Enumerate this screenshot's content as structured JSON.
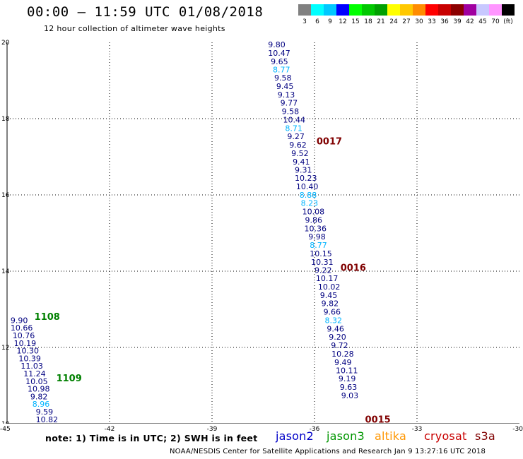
{
  "header": {
    "title": "00:00 – 11:59 UTC 01/08/2018",
    "subtitle": "12 hour collection of altimeter wave heights"
  },
  "color_scale": {
    "colors": [
      "#808080",
      "#00ffff",
      "#00c8ff",
      "#0000ff",
      "#00ff00",
      "#00c800",
      "#00a000",
      "#ffff00",
      "#ffc800",
      "#ff8c00",
      "#ff0000",
      "#c80000",
      "#8c0000",
      "#a000a0",
      "#c8c8ff",
      "#ff96ff",
      "#000000"
    ],
    "labels": [
      "3",
      "6",
      "9",
      "12",
      "15",
      "18",
      "21",
      "24",
      "27",
      "30",
      "33",
      "36",
      "39",
      "42",
      "45",
      "70",
      "(ft)"
    ]
  },
  "chart_data": {
    "type": "scatter",
    "title": "00:00 – 11:59 UTC 01/08/2018",
    "xlabel": "",
    "ylabel": "",
    "xlim": [
      -45,
      -30
    ],
    "ylim": [
      10,
      20
    ],
    "x_ticks": [
      "-45",
      "-42",
      "-39",
      "-36",
      "-33",
      "-30"
    ],
    "y_ticks": [
      "10",
      "12",
      "14",
      "16",
      "18",
      "20"
    ],
    "grid": true,
    "label_colors": {
      "dark": "#000080",
      "light": "#00b4ff",
      "time_jason3": "#008000",
      "time_cryosat": "#800000"
    },
    "series": [
      {
        "name": "",
        "points": [
          {
            "x": -37.36,
            "y": 19.87,
            "v": "9.80",
            "c": "dark"
          },
          {
            "x": -37.36,
            "y": 19.65,
            "v": "10.47",
            "c": "dark"
          },
          {
            "x": -37.28,
            "y": 19.43,
            "v": "9.65",
            "c": "dark"
          },
          {
            "x": -37.22,
            "y": 19.21,
            "v": "8.77",
            "c": "light"
          },
          {
            "x": -37.18,
            "y": 19.0,
            "v": "9.58",
            "c": "dark"
          },
          {
            "x": -37.12,
            "y": 18.78,
            "v": "9.45",
            "c": "dark"
          },
          {
            "x": -37.08,
            "y": 18.56,
            "v": "9.13",
            "c": "dark"
          },
          {
            "x": -37.0,
            "y": 18.34,
            "v": "9.77",
            "c": "dark"
          },
          {
            "x": -36.96,
            "y": 18.12,
            "v": "9.58",
            "c": "dark"
          },
          {
            "x": -36.92,
            "y": 17.9,
            "v": "10.44",
            "c": "dark"
          },
          {
            "x": -36.86,
            "y": 17.68,
            "v": "8.71",
            "c": "light"
          },
          {
            "x": -36.8,
            "y": 17.46,
            "v": "9.27",
            "c": "dark"
          },
          {
            "x": -36.74,
            "y": 17.24,
            "v": "9.62",
            "c": "dark"
          },
          {
            "x": -36.68,
            "y": 17.02,
            "v": "9.52",
            "c": "dark"
          },
          {
            "x": -36.64,
            "y": 16.8,
            "v": "9.41",
            "c": "dark"
          },
          {
            "x": -36.58,
            "y": 16.58,
            "v": "9.31",
            "c": "dark"
          },
          {
            "x": -36.58,
            "y": 16.37,
            "v": "10.23",
            "c": "dark"
          },
          {
            "x": -36.54,
            "y": 16.15,
            "v": "10.40",
            "c": "dark"
          },
          {
            "x": -36.44,
            "y": 15.93,
            "v": "8.88",
            "c": "light"
          },
          {
            "x": -36.4,
            "y": 15.71,
            "v": "8.23",
            "c": "light"
          },
          {
            "x": -36.36,
            "y": 15.49,
            "v": "10.08",
            "c": "dark"
          },
          {
            "x": -36.28,
            "y": 15.27,
            "v": "9.86",
            "c": "dark"
          },
          {
            "x": -36.3,
            "y": 15.05,
            "v": "10.36",
            "c": "dark"
          },
          {
            "x": -36.18,
            "y": 14.83,
            "v": "9.98",
            "c": "dark"
          },
          {
            "x": -36.14,
            "y": 14.61,
            "v": "8.77",
            "c": "light"
          },
          {
            "x": -36.14,
            "y": 14.39,
            "v": "10.15",
            "c": "dark"
          },
          {
            "x": -36.1,
            "y": 14.17,
            "v": "10.31",
            "c": "dark"
          },
          {
            "x": -36.0,
            "y": 13.95,
            "v": "9.22",
            "c": "dark"
          },
          {
            "x": -35.96,
            "y": 13.74,
            "v": "10.17",
            "c": "dark"
          },
          {
            "x": -35.9,
            "y": 13.52,
            "v": "10.02",
            "c": "dark"
          },
          {
            "x": -35.84,
            "y": 13.3,
            "v": "9.45",
            "c": "dark"
          },
          {
            "x": -35.8,
            "y": 13.08,
            "v": "9.82",
            "c": "dark"
          },
          {
            "x": -35.74,
            "y": 12.86,
            "v": "9.66",
            "c": "dark"
          },
          {
            "x": -35.7,
            "y": 12.64,
            "v": "8.32",
            "c": "light"
          },
          {
            "x": -35.64,
            "y": 12.42,
            "v": "9.46",
            "c": "dark"
          },
          {
            "x": -35.58,
            "y": 12.2,
            "v": "9.20",
            "c": "dark"
          },
          {
            "x": -35.52,
            "y": 11.98,
            "v": "9.72",
            "c": "dark"
          },
          {
            "x": -35.5,
            "y": 11.76,
            "v": "10.28",
            "c": "dark"
          },
          {
            "x": -35.42,
            "y": 11.54,
            "v": "9.49",
            "c": "dark"
          },
          {
            "x": -35.38,
            "y": 11.32,
            "v": "10.11",
            "c": "dark"
          },
          {
            "x": -35.3,
            "y": 11.11,
            "v": "9.19",
            "c": "dark"
          },
          {
            "x": -35.26,
            "y": 10.89,
            "v": "9.63",
            "c": "dark"
          },
          {
            "x": -35.22,
            "y": 10.67,
            "v": "9.03",
            "c": "dark"
          }
        ]
      },
      {
        "name": "",
        "points": [
          {
            "x": -44.9,
            "y": 12.64,
            "v": "9.90",
            "c": "dark"
          },
          {
            "x": -44.9,
            "y": 12.44,
            "v": "10.66",
            "c": "dark"
          },
          {
            "x": -44.84,
            "y": 12.24,
            "v": "10.76",
            "c": "dark"
          },
          {
            "x": -44.8,
            "y": 12.04,
            "v": "10.19",
            "c": "dark"
          },
          {
            "x": -44.72,
            "y": 11.84,
            "v": "10.30",
            "c": "dark"
          },
          {
            "x": -44.66,
            "y": 11.64,
            "v": "10.39",
            "c": "dark"
          },
          {
            "x": -44.6,
            "y": 11.44,
            "v": "11.03",
            "c": "dark"
          },
          {
            "x": -44.52,
            "y": 11.24,
            "v": "11.24",
            "c": "dark"
          },
          {
            "x": -44.46,
            "y": 11.04,
            "v": "10.05",
            "c": "dark"
          },
          {
            "x": -44.4,
            "y": 10.84,
            "v": "10.98",
            "c": "dark"
          },
          {
            "x": -44.32,
            "y": 10.64,
            "v": "9.82",
            "c": "dark"
          },
          {
            "x": -44.26,
            "y": 10.44,
            "v": "8.96",
            "c": "light"
          },
          {
            "x": -44.16,
            "y": 10.24,
            "v": "9.59",
            "c": "dark"
          },
          {
            "x": -44.16,
            "y": 10.04,
            "v": "10.82",
            "c": "dark"
          }
        ]
      }
    ],
    "annotations": [
      {
        "text": "0017",
        "x": -35.94,
        "y": 17.32,
        "c": "time_cryosat"
      },
      {
        "text": "0016",
        "x": -35.24,
        "y": 14.01,
        "c": "time_cryosat"
      },
      {
        "text": "0015",
        "x": -34.52,
        "y": 10.03,
        "c": "time_cryosat"
      },
      {
        "text": "1108",
        "x": -44.2,
        "y": 12.72,
        "c": "time_jason3"
      },
      {
        "text": "1109",
        "x": -43.56,
        "y": 11.11,
        "c": "time_jason3"
      }
    ]
  },
  "legend": {
    "items": [
      {
        "label": "jason2",
        "color": "#0000c8",
        "left": 390
      },
      {
        "label": "jason3",
        "color": "#009600",
        "left": 462
      },
      {
        "label": "altika",
        "color": "#ff9600",
        "left": 530
      },
      {
        "label": "cryosat",
        "color": "#c80000",
        "left": 600
      },
      {
        "label": "s3a",
        "color": "#800000",
        "left": 672
      }
    ]
  },
  "notes": {
    "note": "note:  1) Time is in UTC;  2) SWH is in feet",
    "footer": "NOAA/NESDIS Center for Satellite Applications and Research     Jan  9 13:27:16 UTC 2018"
  }
}
